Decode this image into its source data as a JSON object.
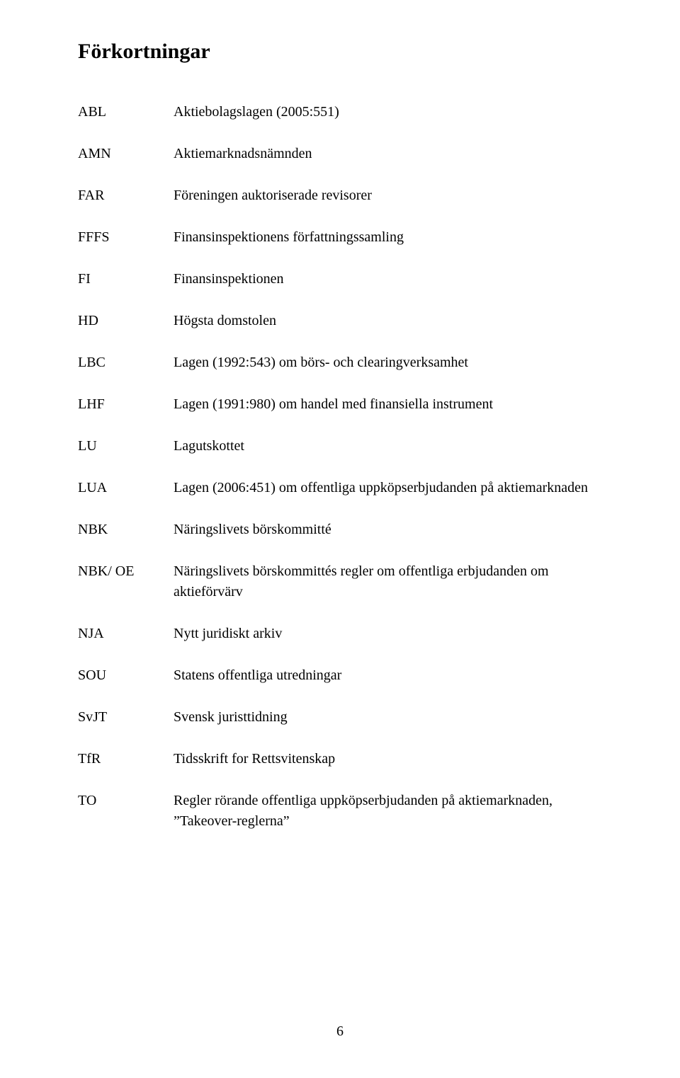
{
  "title": "Förkortningar",
  "rows": [
    {
      "abbr": "ABL",
      "def": "Aktiebolagslagen (2005:551)"
    },
    {
      "abbr": "AMN",
      "def": "Aktiemarknadsnämnden"
    },
    {
      "abbr": "FAR",
      "def": "Föreningen auktoriserade revisorer"
    },
    {
      "abbr": "FFFS",
      "def": "Finansinspektionens författningssamling"
    },
    {
      "abbr": "FI",
      "def": "Finansinspektionen"
    },
    {
      "abbr": "HD",
      "def": "Högsta domstolen"
    },
    {
      "abbr": "LBC",
      "def": "Lagen (1992:543) om börs- och clearingverksamhet"
    },
    {
      "abbr": "LHF",
      "def": "Lagen (1991:980) om handel med finansiella instrument"
    },
    {
      "abbr": "LU",
      "def": "Lagutskottet"
    },
    {
      "abbr": "LUA",
      "def": "Lagen (2006:451) om offentliga uppköpserbjudanden på aktiemarknaden"
    },
    {
      "abbr": "NBK",
      "def": "Näringslivets börskommitté"
    },
    {
      "abbr": "NBK/ OE",
      "def": "Näringslivets börskommittés regler om offentliga erbjudanden om aktieförvärv"
    },
    {
      "abbr": "NJA",
      "def": "Nytt juridiskt arkiv"
    },
    {
      "abbr": "SOU",
      "def": "Statens offentliga utredningar"
    },
    {
      "abbr": "SvJT",
      "def": "Svensk juristtidning"
    },
    {
      "abbr": "TfR",
      "def": "Tidsskrift for Rettsvitenskap"
    },
    {
      "abbr": "TO",
      "def": "Regler rörande offentliga uppköpserbjudanden på aktiemarknaden, ”Takeover-reglerna”"
    }
  ],
  "page_number": "6"
}
